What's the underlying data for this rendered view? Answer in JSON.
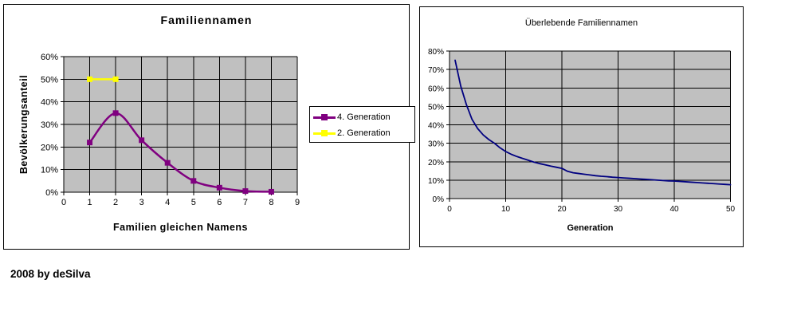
{
  "page": {
    "credit": "2008 by deSilva",
    "background_color": "#FFFFFF"
  },
  "chart_data": [
    {
      "type": "line",
      "title": "Familiennamen",
      "xlabel": "Familien gleichen Namens",
      "ylabel": "Bevölkerungsanteil",
      "xlim": [
        0,
        9
      ],
      "ylim": [
        0,
        60
      ],
      "x_ticks": [
        0,
        1,
        2,
        3,
        4,
        5,
        6,
        7,
        8,
        9
      ],
      "x_tick_labels": [
        "0",
        "1",
        "2",
        "3",
        "4",
        "5",
        "6",
        "7",
        "8",
        "9"
      ],
      "y_ticks": [
        0,
        10,
        20,
        30,
        40,
        50,
        60
      ],
      "y_tick_labels": [
        "0%",
        "10%",
        "20%",
        "30%",
        "40%",
        "50%",
        "60%"
      ],
      "grid": true,
      "plot_background": "#C0C0C0",
      "gridline_color": "#000000",
      "legend_position": "right",
      "series": [
        {
          "name": "4. Generation",
          "color": "#800080",
          "marker": "square",
          "smooth": true,
          "x": [
            1,
            2,
            3,
            4,
            5,
            6,
            7,
            8
          ],
          "y": [
            22,
            35,
            23,
            13,
            5,
            2,
            0.5,
            0.2
          ]
        },
        {
          "name": "2. Generation",
          "color": "#FFFF00",
          "marker": "square",
          "smooth": false,
          "x": [
            1,
            2
          ],
          "y": [
            50,
            50
          ]
        }
      ]
    },
    {
      "type": "line",
      "title": "Überlebende Familiennamen",
      "xlabel": "Generation",
      "ylabel": "",
      "xlim": [
        0,
        50
      ],
      "ylim": [
        0,
        80
      ],
      "x_ticks": [
        0,
        10,
        20,
        30,
        40,
        50
      ],
      "x_tick_labels": [
        "0",
        "10",
        "20",
        "30",
        "40",
        "50"
      ],
      "y_ticks": [
        0,
        10,
        20,
        30,
        40,
        50,
        60,
        70,
        80
      ],
      "y_tick_labels": [
        "0%",
        "10%",
        "20%",
        "30%",
        "40%",
        "50%",
        "60%",
        "70%",
        "80%"
      ],
      "grid": true,
      "plot_background": "#C0C0C0",
      "gridline_color": "#000000",
      "legend_position": "none",
      "series": [
        {
          "name": "Überlebende Familiennamen",
          "color": "#000080",
          "marker": "none",
          "smooth": false,
          "x": [
            1,
            2,
            3,
            4,
            5,
            6,
            7,
            8,
            9,
            10,
            11,
            12,
            13,
            14,
            15,
            16,
            17,
            18,
            19,
            20,
            21,
            22,
            23,
            24,
            25,
            26,
            27,
            28,
            29,
            30,
            31,
            32,
            33,
            34,
            35,
            36,
            37,
            38,
            39,
            40,
            41,
            42,
            43,
            44,
            45,
            46,
            47,
            48,
            49,
            50
          ],
          "y": [
            75,
            61,
            51,
            43,
            38,
            34.5,
            32,
            30,
            27.5,
            25.5,
            24,
            22.8,
            21.8,
            20.8,
            19.8,
            19,
            18.3,
            17.6,
            17,
            16.4,
            14.8,
            14,
            13.6,
            13.2,
            12.8,
            12.4,
            12.1,
            11.9,
            11.6,
            11.4,
            11.2,
            11,
            10.8,
            10.6,
            10.4,
            10.2,
            10,
            9.8,
            9.6,
            9.5,
            9.3,
            9.1,
            8.9,
            8.7,
            8.5,
            8.3,
            8.1,
            7.9,
            7.7,
            7.5
          ]
        }
      ]
    }
  ]
}
